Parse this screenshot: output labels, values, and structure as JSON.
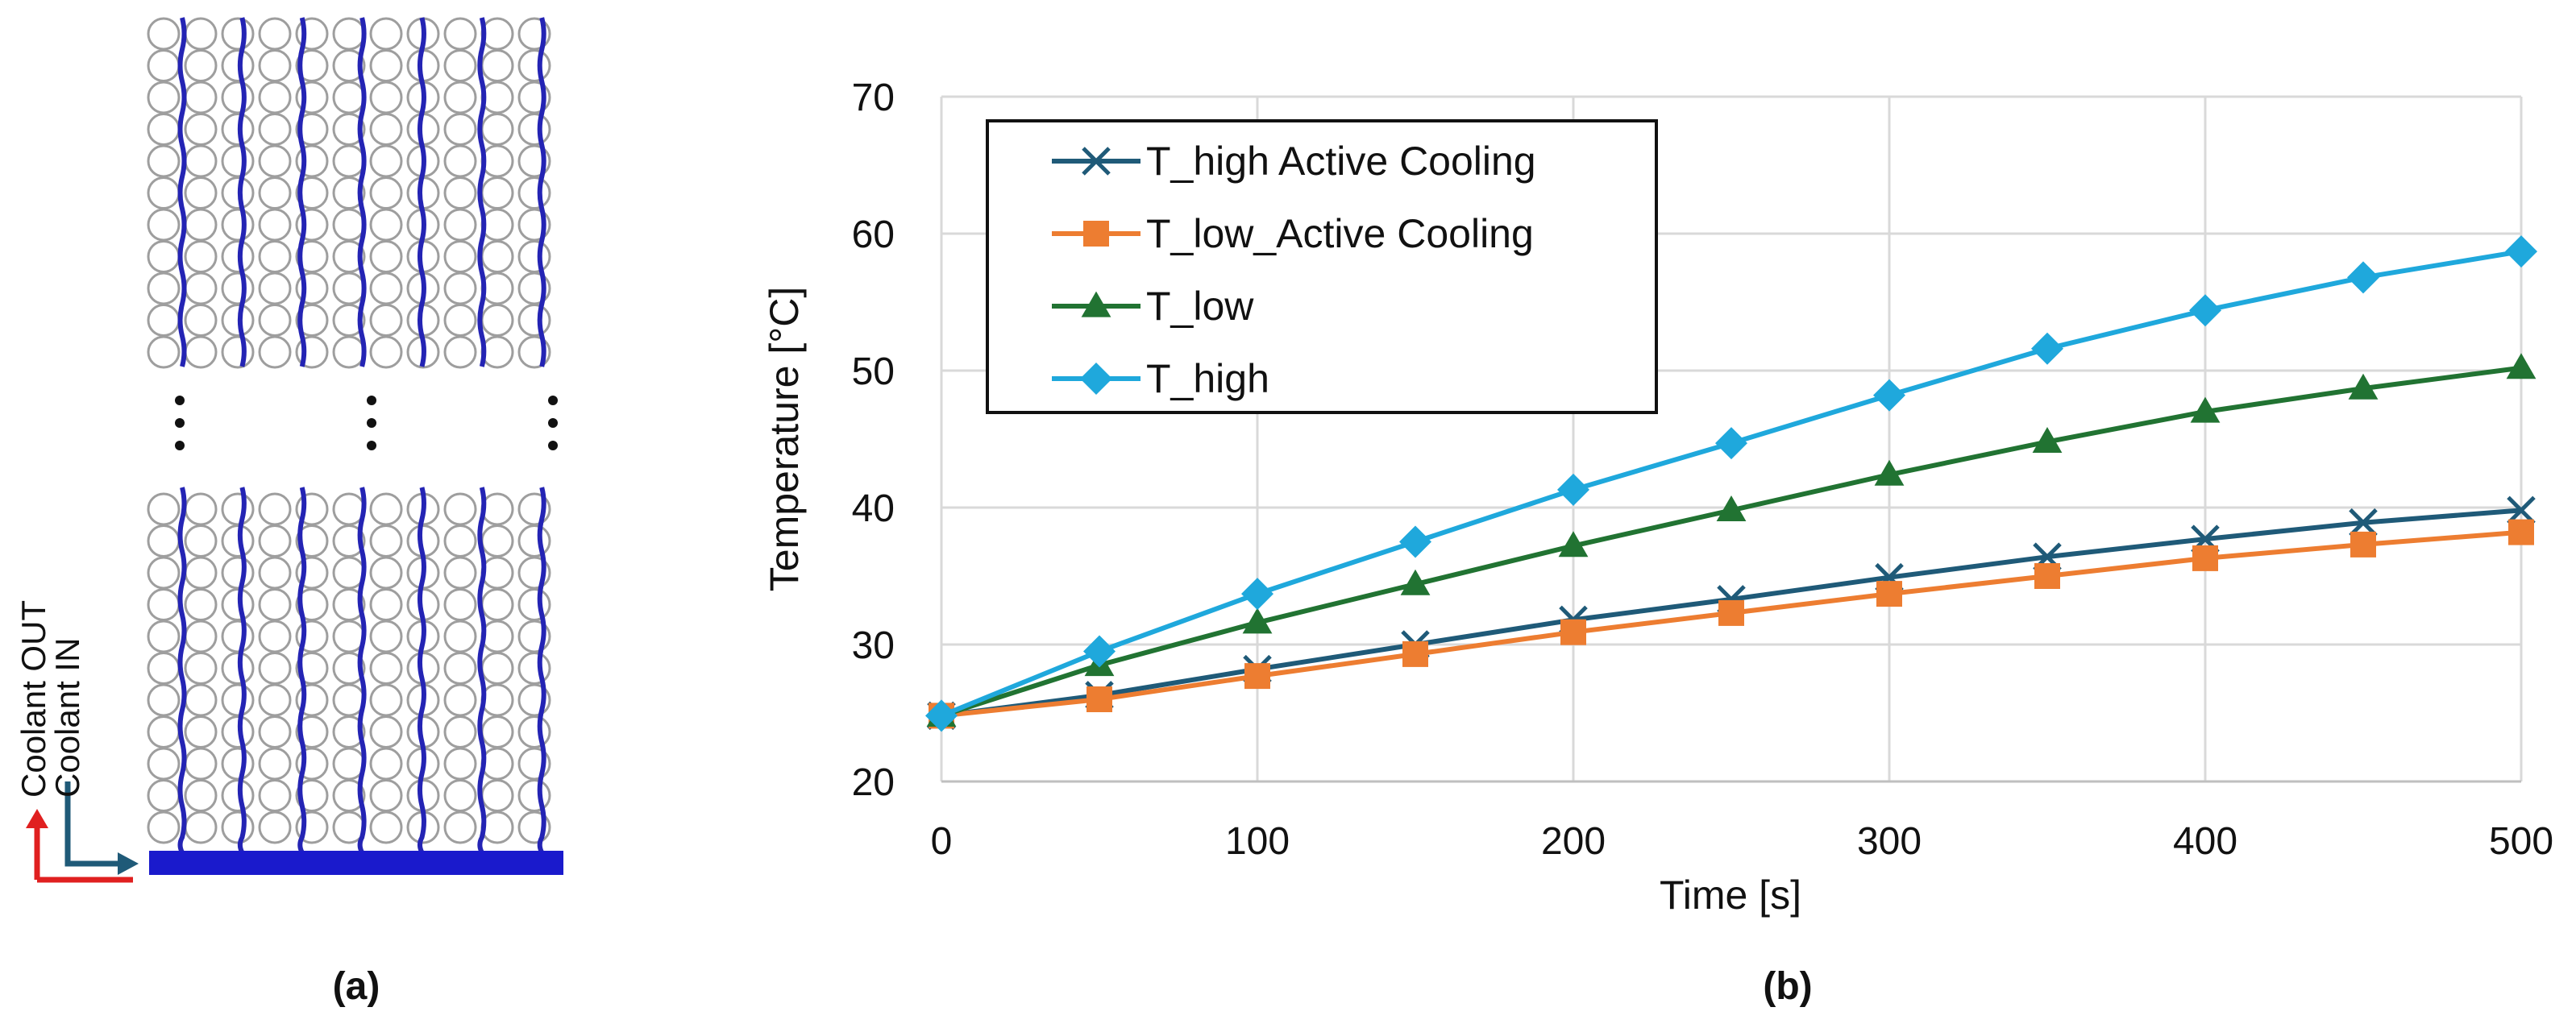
{
  "panel_a": {
    "label": "(a)",
    "coolant_out_label": "Coolant OUT",
    "coolant_in_label": "Coolant IN",
    "cell_rows_top": 11,
    "cell_rows_bottom": 11,
    "cell_columns": 11,
    "channel_count": 7,
    "colors": {
      "cell_outline": "#9e9e9e",
      "channel": "#2424b4",
      "manifold": "#1a1acc",
      "arrow_out": "#e02020",
      "arrow_in": "#1f5a78"
    }
  },
  "panel_b": {
    "label": "(b)"
  },
  "chart_data": {
    "type": "line",
    "title": "",
    "xlabel": "Time [s]",
    "ylabel": "Temperature [°C]",
    "xlim": [
      0,
      500
    ],
    "ylim": [
      20,
      70
    ],
    "xticks": [
      0,
      100,
      200,
      300,
      400,
      500
    ],
    "yticks": [
      20,
      30,
      40,
      50,
      60,
      70
    ],
    "grid": true,
    "legend_position": "top-left",
    "x": [
      0,
      50,
      100,
      150,
      200,
      250,
      300,
      350,
      400,
      450,
      500
    ],
    "series": [
      {
        "name": "T_high Active Cooling",
        "color": "#1f5a78",
        "marker": "x",
        "values": [
          24.8,
          26.3,
          28.2,
          30.0,
          31.8,
          33.3,
          34.9,
          36.4,
          37.7,
          38.9,
          39.8
        ]
      },
      {
        "name": "T_low_Active Cooling",
        "color": "#ed7d31",
        "marker": "square",
        "values": [
          24.8,
          26.0,
          27.7,
          29.3,
          30.9,
          32.3,
          33.7,
          35.0,
          36.3,
          37.3,
          38.2
        ]
      },
      {
        "name": "T_low",
        "color": "#217332",
        "marker": "triangle",
        "values": [
          24.8,
          28.5,
          31.6,
          34.4,
          37.2,
          39.8,
          42.4,
          44.8,
          47.0,
          48.7,
          50.2
        ]
      },
      {
        "name": "T_high",
        "color": "#1fa8dc",
        "marker": "diamond",
        "values": [
          24.8,
          29.5,
          33.7,
          37.5,
          41.3,
          44.7,
          48.2,
          51.6,
          54.4,
          56.8,
          58.7
        ]
      }
    ]
  }
}
